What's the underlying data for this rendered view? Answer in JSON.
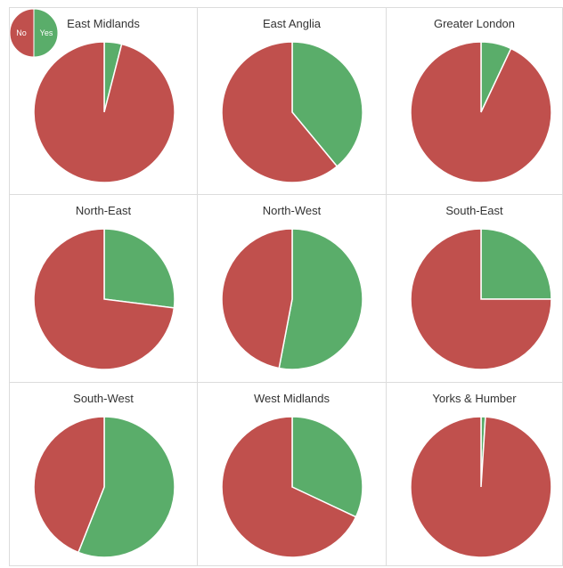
{
  "legend": {
    "entries": [
      {
        "label": "No",
        "color": "#c0504d"
      },
      {
        "label": "Yes",
        "color": "#5aad6a"
      }
    ]
  },
  "colors": {
    "no": "#c0504d",
    "yes": "#5aad6a"
  },
  "chart_data": [
    {
      "type": "pie",
      "title": "East Midlands",
      "categories": [
        "Yes",
        "No"
      ],
      "values": [
        4,
        96
      ],
      "colors": [
        "#5aad6a",
        "#c0504d"
      ]
    },
    {
      "type": "pie",
      "title": "East Anglia",
      "categories": [
        "Yes",
        "No"
      ],
      "values": [
        39,
        61
      ],
      "colors": [
        "#5aad6a",
        "#c0504d"
      ]
    },
    {
      "type": "pie",
      "title": "Greater London",
      "categories": [
        "Yes",
        "No"
      ],
      "values": [
        7,
        93
      ],
      "colors": [
        "#5aad6a",
        "#c0504d"
      ]
    },
    {
      "type": "pie",
      "title": "North-East",
      "categories": [
        "Yes",
        "No"
      ],
      "values": [
        27,
        73
      ],
      "colors": [
        "#5aad6a",
        "#c0504d"
      ]
    },
    {
      "type": "pie",
      "title": "North-West",
      "categories": [
        "Yes",
        "No"
      ],
      "values": [
        53,
        47
      ],
      "colors": [
        "#5aad6a",
        "#c0504d"
      ]
    },
    {
      "type": "pie",
      "title": "South-East",
      "categories": [
        "Yes",
        "No"
      ],
      "values": [
        25,
        75
      ],
      "colors": [
        "#5aad6a",
        "#c0504d"
      ]
    },
    {
      "type": "pie",
      "title": "South-West",
      "categories": [
        "Yes",
        "No"
      ],
      "values": [
        56,
        44
      ],
      "colors": [
        "#5aad6a",
        "#c0504d"
      ]
    },
    {
      "type": "pie",
      "title": "West Midlands",
      "categories": [
        "Yes",
        "No"
      ],
      "values": [
        32,
        68
      ],
      "colors": [
        "#5aad6a",
        "#c0504d"
      ]
    },
    {
      "type": "pie",
      "title": "Yorks & Humber",
      "categories": [
        "Yes",
        "No"
      ],
      "values": [
        1,
        99
      ],
      "colors": [
        "#5aad6a",
        "#c0504d"
      ]
    }
  ]
}
